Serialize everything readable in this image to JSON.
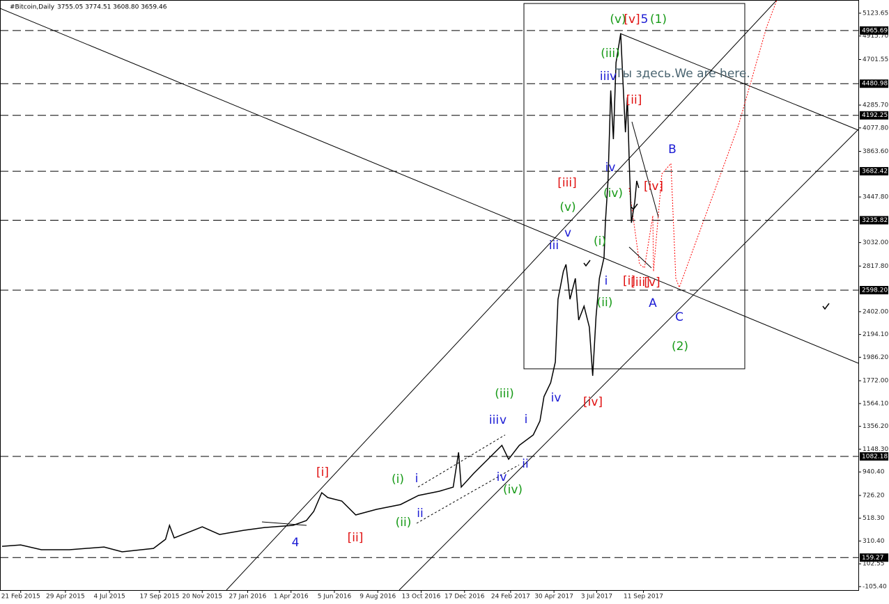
{
  "chart_data": {
    "type": "line",
    "title": "#Bitcoin,Daily",
    "subtitle": "3755.05 3774.51 3608.80 3659.46",
    "color": "#000000",
    "x": [
      "2015-01-24",
      "2015-02-21",
      "2015-03-24",
      "2015-05-05",
      "2015-06-26",
      "2015-07-23",
      "2015-09-08",
      "2015-09-26",
      "2015-10-02",
      "2015-10-09",
      "2015-10-30",
      "2015-11-20",
      "2015-12-16",
      "2016-01-21",
      "2016-02-22",
      "2016-04-04",
      "2016-04-24",
      "2016-05-05",
      "2016-05-17",
      "2016-05-26",
      "2016-06-16",
      "2016-07-07",
      "2016-08-07",
      "2016-09-12",
      "2016-10-09",
      "2016-11-09",
      "2016-11-30",
      "2016-12-08",
      "2016-12-12",
      "2016-12-31",
      "2017-01-21",
      "2017-02-11",
      "2017-02-21",
      "2017-03-09",
      "2017-03-30",
      "2017-04-09",
      "2017-04-15",
      "2017-04-25",
      "2017-05-02",
      "2017-05-06",
      "2017-05-14",
      "2017-05-18",
      "2017-05-24",
      "2017-06-01",
      "2017-06-06",
      "2017-06-14",
      "2017-06-22",
      "2017-06-27",
      "2017-07-02",
      "2017-07-07",
      "2017-07-14",
      "2017-07-16",
      "2017-07-20",
      "2017-07-24",
      "2017-07-28",
      "2017-08-01",
      "2017-08-06",
      "2017-08-08",
      "2017-08-11",
      "2017-08-15",
      "2017-08-18",
      "2017-08-21",
      "2017-08-24",
      "2017-08-29",
      "2017-09-01",
      "2017-09-04"
    ],
    "values": [
      262,
      275,
      231,
      231,
      256,
      212,
      243,
      326,
      453,
      339,
      389,
      440,
      370,
      408,
      434,
      453,
      497,
      580,
      751,
      707,
      675,
      548,
      599,
      643,
      726,
      764,
      802,
      1119,
      802,
      929,
      1056,
      1183,
      1056,
      1183,
      1278,
      1405,
      1627,
      1754,
      1944,
      2515,
      2769,
      2833,
      2515,
      2706,
      2325,
      2452,
      2261,
      1817,
      2357,
      2706,
      2896,
      3213,
      3594,
      4419,
      3975,
      4673,
      4863,
      4939,
      4546,
      4038,
      4356,
      3721,
      3213,
      3403,
      3594,
      3530
    ],
    "xlim": [
      "2015-01-21",
      "2018-07-30"
    ],
    "xticks": [
      {
        "value": "2015-02-21",
        "label": "21 Feb 2015"
      },
      {
        "value": "2015-04-29",
        "label": "29 Apr 2015"
      },
      {
        "value": "2015-07-04",
        "label": "4 Jul 2015"
      },
      {
        "value": "2015-09-17",
        "label": "17 Sep 2015"
      },
      {
        "value": "2015-11-20",
        "label": "20 Nov 2015"
      },
      {
        "value": "2016-01-27",
        "label": "27 Jan 2016"
      },
      {
        "value": "2016-04-01",
        "label": "1 Apr 2016"
      },
      {
        "value": "2016-06-05",
        "label": "5 Jun 2016"
      },
      {
        "value": "2016-08-09",
        "label": "9 Aug 2016"
      },
      {
        "value": "2016-10-13",
        "label": "13 Oct 2016"
      },
      {
        "value": "2016-12-17",
        "label": "17 Dec 2016"
      },
      {
        "value": "2017-02-24",
        "label": "24 Feb 2017"
      },
      {
        "value": "2017-04-30",
        "label": "30 Apr 2017"
      },
      {
        "value": "2017-07-03",
        "label": "3 Jul 2017"
      },
      {
        "value": "2017-09-11",
        "label": "11 Sep 2017"
      }
    ],
    "ylim": [
      -137,
      5244
    ],
    "yticks": [
      5123.65,
      {
        "value": 4915.7,
        "label": "4915.70"
      },
      4701.55,
      {
        "value": 4285.7,
        "label": "4285.70"
      },
      {
        "value": 4077.8,
        "label": "4077.80"
      },
      {
        "value": 3863.6,
        "label": "3863.60"
      },
      {
        "value": 3447.8,
        "label": "3447.80"
      },
      {
        "value": 3032,
        "label": "3032.00"
      },
      {
        "value": 2817.8,
        "label": "2817.80"
      },
      {
        "value": 2402,
        "label": "2402.00"
      },
      {
        "value": 2194.1,
        "label": "2194.10"
      },
      {
        "value": 1986.2,
        "label": "1986.20"
      },
      {
        "value": 1772,
        "label": "1772.00"
      },
      {
        "value": 1564.1,
        "label": "1564.10"
      },
      {
        "value": 1356.2,
        "label": "1356.20"
      },
      {
        "value": 1148.3,
        "label": "1148.30"
      },
      {
        "value": 940.4,
        "label": "940.40"
      },
      {
        "value": 726.2,
        "label": "726.20"
      },
      {
        "value": 518.3,
        "label": "518.30"
      },
      {
        "value": 310.4,
        "label": "310.40"
      },
      102.55,
      {
        "value": -105.4,
        "label": "-105.40"
      }
    ],
    "levels": [
      4965.69,
      4480.98,
      4192.25,
      3682.42,
      3235.82,
      {
        "value": 2598.2,
        "label": "2598.20"
      },
      1082.18,
      159.27
    ],
    "annotations": [
      {
        "text": "(v)",
        "color": "#179a17"
      },
      {
        "text": "[v]",
        "color": "#e01010"
      },
      {
        "text": "5",
        "color": "#1a1ad4"
      },
      {
        "text": "(1)",
        "color": "#179a17"
      },
      {
        "text": "(iii)",
        "color": "#179a17"
      },
      {
        "text": "iii",
        "color": "#1a1ad4"
      },
      {
        "text": "v",
        "color": "#1a1ad4"
      },
      {
        "text": "Ты здесь.We are here.",
        "color": "#4a6470"
      },
      {
        "text": "[ii]",
        "color": "#e01010"
      },
      {
        "text": "B",
        "color": "#1a1ad4"
      },
      {
        "text": "iv",
        "color": "#1a1ad4"
      },
      {
        "text": "[iii]",
        "color": "#e01010"
      },
      {
        "text": "[iv]",
        "color": "#e01010"
      },
      {
        "text": "(iv)",
        "color": "#179a17"
      },
      {
        "text": "(v)",
        "color": "#179a17"
      },
      {
        "text": "v",
        "color": "#1a1ad4"
      },
      {
        "text": "iii",
        "color": "#1a1ad4"
      },
      {
        "text": "(i)",
        "color": "#179a17"
      },
      {
        "text": "i",
        "color": "#1a1ad4"
      },
      {
        "text": "[i]",
        "color": "#e01010"
      },
      {
        "text": "[iii]",
        "color": "#e01010"
      },
      {
        "text": "[v]",
        "color": "#e01010"
      },
      {
        "text": "(ii)",
        "color": "#179a17"
      },
      {
        "text": "A",
        "color": "#1a1ad4"
      },
      {
        "text": "C",
        "color": "#1a1ad4"
      },
      {
        "text": "(2)",
        "color": "#179a17"
      },
      {
        "text": "(iii)",
        "color": "#179a17"
      },
      {
        "text": "iv",
        "color": "#1a1ad4"
      },
      {
        "text": "[iv]",
        "color": "#e01010"
      },
      {
        "text": "iii",
        "color": "#1a1ad4"
      },
      {
        "text": "v",
        "color": "#1a1ad4"
      },
      {
        "text": "i",
        "color": "#1a1ad4"
      },
      {
        "text": "ii",
        "color": "#1a1ad4"
      },
      {
        "text": "iv",
        "color": "#1a1ad4"
      },
      {
        "text": "(iv)",
        "color": "#179a17"
      },
      {
        "text": "[i]",
        "color": "#e01010"
      },
      {
        "text": "(i)",
        "color": "#179a17"
      },
      {
        "text": "i",
        "color": "#1a1ad4"
      },
      {
        "text": "ii",
        "color": "#1a1ad4"
      },
      {
        "text": "(ii)",
        "color": "#179a17"
      },
      {
        "text": "[ii]",
        "color": "#e01010"
      },
      {
        "text": "4",
        "color": "#1a1ad4"
      }
    ]
  }
}
